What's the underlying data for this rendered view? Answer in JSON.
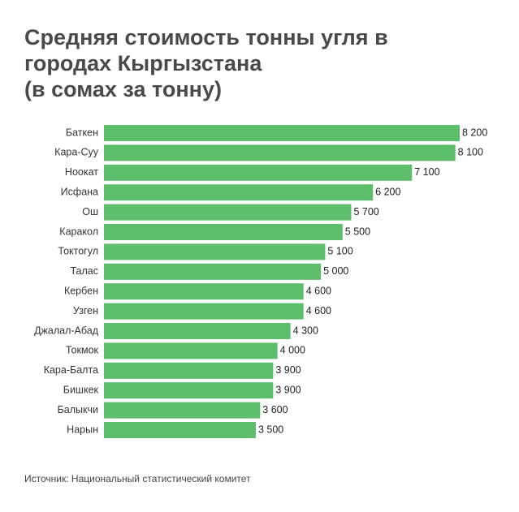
{
  "chart_data": {
    "type": "bar",
    "orientation": "horizontal",
    "title_lines": [
      "Средняя стоимость тонны угля в",
      "городах Кыргызстана",
      "(в сомах за тонну)"
    ],
    "categories": [
      "Баткен",
      "Кара-Суу",
      "Ноокат",
      "Исфана",
      "Ош",
      "Каракол",
      "Токтогул",
      "Талас",
      "Кербен",
      "Узген",
      "Джалал-Абад",
      "Токмок",
      "Кара-Балта",
      "Бишкек",
      "Балыкчи",
      "Нарын"
    ],
    "values": [
      8200,
      8100,
      7100,
      6200,
      5700,
      5500,
      5100,
      5000,
      4600,
      4600,
      4300,
      4000,
      3900,
      3900,
      3600,
      3500
    ],
    "value_labels": [
      "8 200",
      "8 100",
      "7 100",
      "6 200",
      "5 700",
      "5 500",
      "5 100",
      "5 000",
      "4 600",
      "4 600",
      "4 300",
      "4 000",
      "3 900",
      "3 900",
      "3 600",
      "3 500"
    ],
    "xlim": [
      0,
      8200
    ],
    "grid": false,
    "legend": "none",
    "bar_color": "#5cbd6a",
    "source": "Источник: Национальный статистический комитет"
  }
}
